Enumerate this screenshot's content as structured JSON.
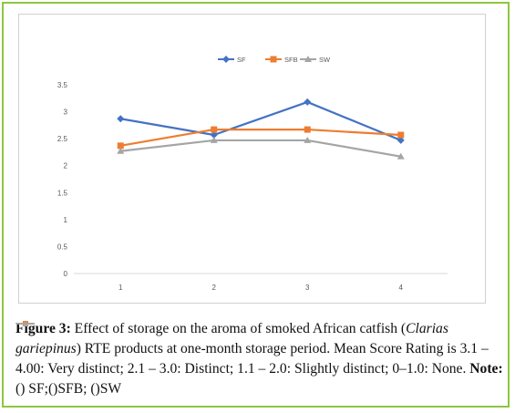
{
  "chart_data": {
    "type": "line",
    "categories": [
      "1",
      "2",
      "3",
      "4"
    ],
    "series": [
      {
        "name": "SF",
        "values": [
          2.87,
          2.57,
          3.18,
          2.47
        ],
        "color": "#4472c4",
        "marker": "diamond"
      },
      {
        "name": "SFB",
        "values": [
          2.37,
          2.67,
          2.67,
          2.57
        ],
        "color": "#ed7d31",
        "marker": "square"
      },
      {
        "name": "SW",
        "values": [
          2.27,
          2.47,
          2.47,
          2.17
        ],
        "color": "#a5a5a5",
        "marker": "triangle"
      }
    ],
    "y_ticks": [
      "0",
      "0.5",
      "1",
      "1.5",
      "2",
      "2.5",
      "3",
      "3.5"
    ],
    "ylim": [
      0,
      3.5
    ],
    "grid": false,
    "legend": "top-center",
    "title": "",
    "xlabel": "",
    "ylabel": ""
  },
  "caption": {
    "label": "Figure 3:",
    "text1": " Effect of storage on the aroma of smoked African catfish (",
    "species": "Clarias gariepinus",
    "text2": ") RTE products at one-month storage period. Mean Score Rating is 3.1 – 4.00: Very distinct; 2.1 – 3.0: Distinct; 1.1 – 2.0: Slightly distinct; 0–1.0: None. ",
    "note_label": "Note:",
    "open1": "(",
    "close_sf": ") SF;(",
    "close_sfb": ")SFB; (",
    "close_sw": ")SW"
  },
  "colors": {
    "frame": "#8dc63f",
    "sf": "#4472c4",
    "sfb": "#ed7d31",
    "sw": "#a5a5a5"
  }
}
